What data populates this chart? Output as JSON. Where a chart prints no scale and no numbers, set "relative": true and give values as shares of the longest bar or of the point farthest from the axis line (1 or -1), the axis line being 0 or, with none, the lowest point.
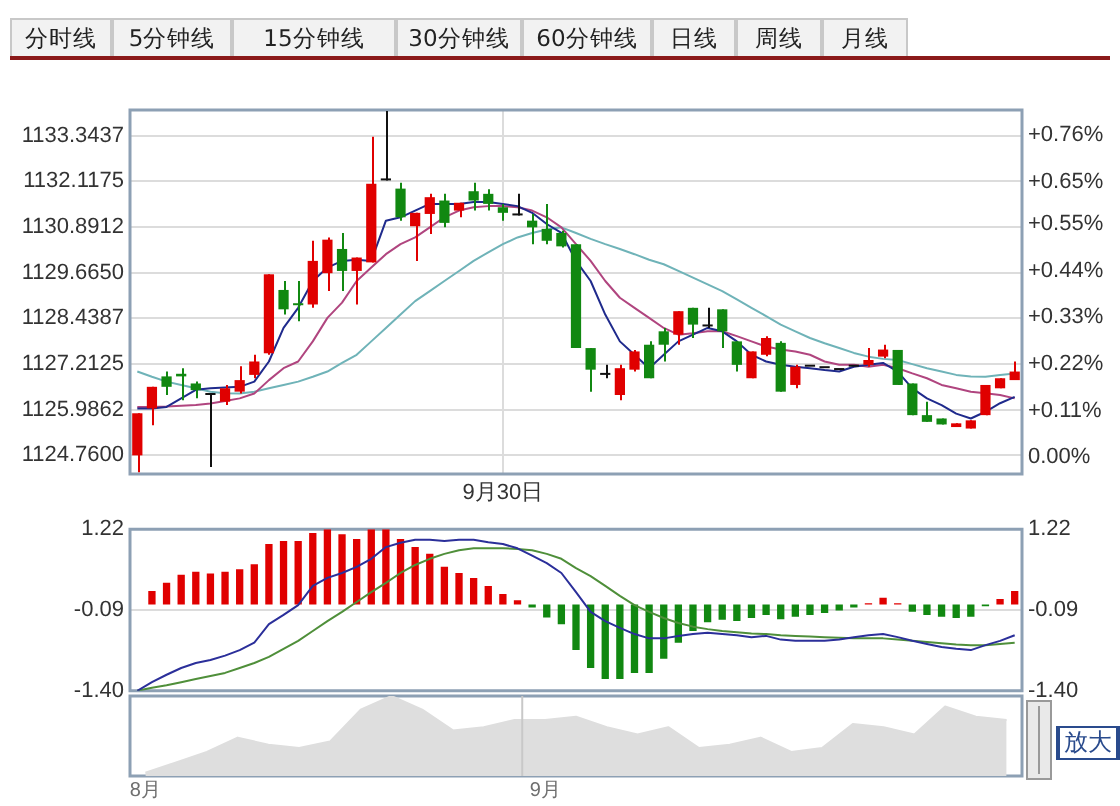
{
  "chart_data": [
    {
      "type": "other",
      "annotations": [
        "分时线",
        "5分钟线",
        "15分钟线",
        "30分钟线",
        "60分钟线",
        "日线",
        "周线",
        "月线"
      ]
    },
    {
      "type": "candlestick",
      "grid": true,
      "categories": [
        null,
        null,
        null,
        null,
        null,
        null,
        null,
        null,
        null,
        null,
        null,
        null,
        null,
        null,
        null,
        null,
        null,
        null,
        null,
        null,
        null,
        null,
        null,
        null,
        null,
        "9月30日",
        null,
        null,
        null,
        null,
        null,
        null,
        null,
        null,
        null,
        null,
        null,
        null,
        null,
        null,
        null,
        null,
        null,
        null,
        null,
        null,
        null,
        null,
        null,
        null,
        null,
        null,
        null,
        null,
        null,
        null,
        null,
        null,
        null,
        null,
        null
      ],
      "ohlc": [
        [
          1124.76,
          1125.89,
          1124.31,
          1125.89
        ],
        [
          1126.02,
          1126.6,
          1125.57,
          1126.6
        ],
        [
          1126.88,
          1127.01,
          1126.38,
          1126.6
        ],
        [
          1126.95,
          1127.1,
          1126.24,
          1126.88
        ],
        [
          1126.69,
          1126.74,
          1126.29,
          1126.51
        ],
        [
          1126.38,
          1126.43,
          1124.45,
          1126.38
        ],
        [
          1126.2,
          1126.65,
          1126.11,
          1126.56
        ],
        [
          1126.47,
          1127.15,
          1126.42,
          1126.78
        ],
        [
          1126.92,
          1127.46,
          1126.83,
          1127.28
        ],
        [
          1127.5,
          1129.62,
          1127.46,
          1129.62
        ],
        [
          1129.2,
          1129.44,
          1128.54,
          1128.68
        ],
        [
          1128.84,
          1129.44,
          1128.36,
          1128.79
        ],
        [
          1128.81,
          1130.52,
          1128.72,
          1129.98
        ],
        [
          1129.65,
          1130.61,
          1129.17,
          1130.55
        ],
        [
          1130.3,
          1130.73,
          1129.17,
          1129.71
        ],
        [
          1129.71,
          1130.07,
          1128.81,
          1130.07
        ],
        [
          1129.94,
          1133.31,
          1129.94,
          1132.05
        ],
        [
          1132.14,
          1134.0,
          1132.14,
          1132.14
        ],
        [
          1131.92,
          1132.08,
          1131.06,
          1131.15
        ],
        [
          1130.91,
          1131.27,
          1129.98,
          1131.27
        ],
        [
          1131.24,
          1131.78,
          1130.7,
          1131.69
        ],
        [
          1131.6,
          1131.78,
          1130.88,
          1131.0
        ],
        [
          1131.33,
          1131.54,
          1131.15,
          1131.54
        ],
        [
          1131.85,
          1132.08,
          1131.33,
          1131.6
        ],
        [
          1131.78,
          1131.9,
          1131.33,
          1131.51
        ],
        [
          1131.42,
          1131.51,
          1131.06,
          1131.27
        ],
        [
          1131.2,
          1131.78,
          1131.2,
          1131.2
        ],
        [
          1131.06,
          1131.24,
          1130.43,
          1130.88
        ],
        [
          1130.84,
          1131.51,
          1130.43,
          1130.52
        ],
        [
          1130.73,
          1130.79,
          1130.34,
          1130.37
        ],
        [
          1130.43,
          1130.43,
          1127.64,
          1127.64
        ],
        [
          1127.64,
          1127.64,
          1126.47,
          1127.06
        ],
        [
          1126.92,
          1127.19,
          1126.83,
          1126.92
        ],
        [
          1126.38,
          1127.19,
          1126.24,
          1127.1
        ],
        [
          1127.06,
          1127.59,
          1127.01,
          1127.55
        ],
        [
          1127.73,
          1127.82,
          1126.83,
          1126.83
        ],
        [
          1128.09,
          1128.18,
          1127.28,
          1127.73
        ],
        [
          1128.0,
          1128.63,
          1127.73,
          1128.63
        ],
        [
          1128.72,
          1128.72,
          1127.91,
          1128.27
        ],
        [
          1128.22,
          1128.72,
          1128.18,
          1128.22
        ],
        [
          1128.68,
          1128.68,
          1127.64,
          1128.09
        ],
        [
          1127.82,
          1127.82,
          1127.01,
          1127.19
        ],
        [
          1126.83,
          1127.55,
          1126.83,
          1127.55
        ],
        [
          1127.46,
          1127.96,
          1127.42,
          1127.91
        ],
        [
          1127.78,
          1127.82,
          1126.47,
          1126.47
        ],
        [
          1126.65,
          1127.19,
          1126.56,
          1127.14
        ],
        [
          1127.14,
          1127.14,
          1127.14,
          1127.14
        ],
        [
          1127.1,
          1127.1,
          1127.1,
          1127.1
        ],
        [
          1127.05,
          1127.05,
          1127.05,
          1127.05
        ],
        [
          1127.14,
          1127.14,
          1127.14,
          1127.14
        ],
        [
          1127.19,
          1127.64,
          1127.14,
          1127.32
        ],
        [
          1127.41,
          1127.73,
          1127.37,
          1127.6
        ],
        [
          1127.59,
          1127.59,
          1126.65,
          1126.65
        ],
        [
          1126.69,
          1126.69,
          1125.84,
          1125.84
        ],
        [
          1125.84,
          1126.2,
          1125.66,
          1125.66
        ],
        [
          1125.75,
          1125.75,
          1125.59,
          1125.59
        ],
        [
          1125.52,
          1125.62,
          1125.52,
          1125.62
        ],
        [
          1125.48,
          1125.7,
          1125.48,
          1125.7
        ],
        [
          1125.84,
          1126.65,
          1125.84,
          1126.65
        ],
        [
          1126.56,
          1126.83,
          1126.56,
          1126.83
        ],
        [
          1126.78,
          1127.28,
          1126.78,
          1127.01
        ]
      ],
      "series": [
        {
          "type": "line",
          "color": "#1f2a8c",
          "values": [
            1126.02,
            1126.02,
            1126.06,
            1126.29,
            1126.52,
            1126.56,
            1126.58,
            1126.6,
            1126.74,
            1127.28,
            1128.18,
            1128.72,
            1129.44,
            1129.8,
            1129.98,
            1130.01,
            1129.98,
            1131.06,
            1131.15,
            1131.33,
            1131.51,
            1131.51,
            1131.51,
            1131.56,
            1131.56,
            1131.51,
            1131.45,
            1131.27,
            1130.97,
            1130.73,
            1129.98,
            1129.44,
            1128.54,
            1127.82,
            1127.46,
            1127.1,
            1127.46,
            1127.82,
            1128.0,
            1128.18,
            1128.09,
            1127.82,
            1127.46,
            1127.28,
            1127.19,
            1127.14,
            1127.1,
            1127.05,
            1127.01,
            1127.14,
            1127.19,
            1127.24,
            1127.01,
            1126.56,
            1126.29,
            1126.11,
            1125.88,
            1125.75,
            1125.93,
            1126.16,
            1126.33
          ]
        },
        {
          "type": "line",
          "color": "#b0457f",
          "values": [
            1126.06,
            1126.06,
            1126.07,
            1126.09,
            1126.11,
            1126.15,
            1126.22,
            1126.29,
            1126.42,
            1126.78,
            1127.1,
            1127.28,
            1127.82,
            1128.45,
            1128.86,
            1129.44,
            1129.8,
            1130.16,
            1130.43,
            1130.61,
            1130.88,
            1131.15,
            1131.33,
            1131.42,
            1131.45,
            1131.45,
            1131.42,
            1131.33,
            1131.15,
            1130.88,
            1130.43,
            1129.98,
            1129.44,
            1128.99,
            1128.72,
            1128.45,
            1128.18,
            1128.0,
            1128.04,
            1128.09,
            1128.09,
            1127.96,
            1127.82,
            1127.68,
            1127.6,
            1127.55,
            1127.46,
            1127.28,
            1127.19,
            1127.19,
            1127.14,
            1127.19,
            1127.1,
            1126.96,
            1126.83,
            1126.65,
            1126.56,
            1126.47,
            1126.43,
            1126.38,
            1126.29
          ]
        },
        {
          "type": "line",
          "color": "#6fb3b8",
          "values": [
            1127.01,
            1126.87,
            1126.74,
            1126.65,
            1126.56,
            1126.47,
            1126.43,
            1126.42,
            1126.47,
            1126.56,
            1126.65,
            1126.74,
            1126.87,
            1127.01,
            1127.24,
            1127.46,
            1127.82,
            1128.18,
            1128.54,
            1128.9,
            1129.17,
            1129.44,
            1129.71,
            1129.98,
            1130.21,
            1130.43,
            1130.61,
            1130.73,
            1130.82,
            1130.88,
            1130.73,
            1130.57,
            1130.43,
            1130.3,
            1130.16,
            1130.01,
            1129.89,
            1129.71,
            1129.53,
            1129.35,
            1129.17,
            1128.95,
            1128.72,
            1128.5,
            1128.27,
            1128.09,
            1127.91,
            1127.77,
            1127.64,
            1127.51,
            1127.41,
            1127.35,
            1127.32,
            1127.21,
            1127.1,
            1127.01,
            1126.92,
            1126.88,
            1126.87,
            1126.92,
            1126.96
          ]
        }
      ],
      "ylim": [
        1124.26,
        1134.03
      ],
      "yticks": [
        {
          "value": 1124.76,
          "label": "1124.7600"
        },
        1125.9862,
        1127.2125,
        1128.4387,
        {
          "value": 1129.665,
          "label": "1129.6650"
        },
        1130.8912,
        1132.1175,
        1133.3437
      ],
      "y2lim": [
        -0.04,
        0.82
      ],
      "y2ticks": [
        {
          "value": 0,
          "label": "0.00%"
        },
        {
          "value": 0.11,
          "label": "+0.11%"
        },
        {
          "value": 0.22,
          "label": "+0.22%"
        },
        {
          "value": 0.33,
          "label": "+0.33%"
        },
        {
          "value": 0.44,
          "label": "+0.44%"
        },
        {
          "value": 0.55,
          "label": "+0.55%"
        },
        {
          "value": 0.65,
          "label": "+0.65%"
        },
        {
          "value": 0.76,
          "label": "+0.76%"
        }
      ]
    },
    {
      "type": "bar",
      "grid": "y",
      "tick_labels": "y",
      "categories": [
        null,
        null,
        null,
        null,
        null,
        null,
        null,
        null,
        null,
        null,
        null,
        null,
        null,
        null,
        null,
        null,
        null,
        null,
        null,
        null,
        null,
        null,
        null,
        null,
        null,
        null,
        null,
        null,
        null,
        null,
        null,
        null,
        null,
        null,
        null,
        null,
        null,
        null,
        null,
        null,
        null,
        null,
        null,
        null,
        null,
        null,
        null,
        null,
        null,
        null,
        null,
        null,
        null,
        null,
        null,
        null,
        null,
        null,
        null,
        null,
        null
      ],
      "series": [
        {
          "type": "bar",
          "values": [
            null,
            0.22,
            0.35,
            0.48,
            0.53,
            0.5,
            0.53,
            0.57,
            0.65,
            0.98,
            1.03,
            1.03,
            1.16,
            1.22,
            1.14,
            1.06,
            1.22,
            1.22,
            1.06,
            0.93,
            0.82,
            0.61,
            0.51,
            0.43,
            0.3,
            0.17,
            0.07,
            -0.05,
            -0.21,
            -0.32,
            -0.74,
            -1.03,
            -1.21,
            -1.21,
            -1.11,
            -1.11,
            -0.88,
            -0.62,
            -0.43,
            -0.29,
            -0.25,
            -0.27,
            -0.22,
            -0.17,
            -0.24,
            -0.2,
            -0.17,
            -0.14,
            -0.1,
            -0.05,
            0.02,
            0.11,
            0.02,
            -0.12,
            -0.17,
            -0.2,
            -0.22,
            -0.2,
            -0.03,
            0.09,
            0.22
          ],
          "colors": [
            null,
            "#e00000",
            "#e00000",
            "#e00000",
            "#e00000",
            "#e00000",
            "#e00000",
            "#e00000",
            "#e00000",
            "#e00000",
            "#e00000",
            "#e00000",
            "#e00000",
            "#e00000",
            "#e00000",
            "#e00000",
            "#e00000",
            "#e00000",
            "#e00000",
            "#e00000",
            "#e00000",
            "#e00000",
            "#e00000",
            "#e00000",
            "#e00000",
            "#e00000",
            "#e00000",
            "#118811",
            "#118811",
            "#118811",
            "#118811",
            "#118811",
            "#118811",
            "#118811",
            "#118811",
            "#118811",
            "#118811",
            "#118811",
            "#118811",
            "#118811",
            "#118811",
            "#118811",
            "#118811",
            "#118811",
            "#118811",
            "#118811",
            "#118811",
            "#118811",
            "#118811",
            "#118811",
            "#e00000",
            "#e00000",
            "#e00000",
            "#118811",
            "#118811",
            "#118811",
            "#118811",
            "#118811",
            "#118811",
            "#e00000",
            "#e00000"
          ]
        },
        {
          "type": "line",
          "color": "#2b2f9a",
          "values": [
            -1.4,
            -1.26,
            -1.14,
            -1.03,
            -0.95,
            -0.9,
            -0.83,
            -0.74,
            -0.62,
            -0.32,
            -0.17,
            -0.01,
            0.3,
            0.43,
            0.51,
            0.61,
            0.74,
            0.93,
            1.0,
            1.05,
            1.05,
            1.03,
            1.05,
            1.05,
            1.01,
            0.98,
            0.91,
            0.79,
            0.67,
            0.51,
            0.2,
            -0.12,
            -0.27,
            -0.38,
            -0.48,
            -0.55,
            -0.55,
            -0.51,
            -0.48,
            -0.46,
            -0.48,
            -0.5,
            -0.53,
            -0.51,
            -0.57,
            -0.59,
            -0.59,
            -0.59,
            -0.57,
            -0.53,
            -0.5,
            -0.48,
            -0.53,
            -0.59,
            -0.64,
            -0.69,
            -0.72,
            -0.74,
            -0.66,
            -0.59,
            -0.5
          ]
        },
        {
          "type": "line",
          "color": "#4f8f3a",
          "values": [
            -1.4,
            -1.35,
            -1.31,
            -1.26,
            -1.21,
            -1.16,
            -1.11,
            -1.03,
            -0.95,
            -0.85,
            -0.72,
            -0.59,
            -0.43,
            -0.27,
            -0.12,
            0.04,
            0.2,
            0.35,
            0.51,
            0.64,
            0.74,
            0.82,
            0.88,
            0.91,
            0.91,
            0.91,
            0.9,
            0.88,
            0.82,
            0.74,
            0.59,
            0.46,
            0.3,
            0.14,
            -0.01,
            -0.12,
            -0.22,
            -0.3,
            -0.36,
            -0.4,
            -0.43,
            -0.45,
            -0.47,
            -0.48,
            -0.5,
            -0.51,
            -0.52,
            -0.53,
            -0.54,
            -0.55,
            -0.55,
            -0.55,
            -0.57,
            -0.59,
            -0.61,
            -0.63,
            -0.65,
            -0.66,
            -0.66,
            -0.64,
            -0.62
          ]
        }
      ],
      "ylim": [
        -1.4,
        1.22
      ],
      "yticks": [
        {
          "value": -1.4,
          "label": "-1.40"
        },
        -0.09,
        1.22
      ],
      "y2lim": [
        -1.4,
        1.22
      ],
      "y2ticks": [
        {
          "value": -1.4,
          "label": "-1.40"
        },
        -0.09,
        1.22
      ]
    },
    {
      "type": "area",
      "relative": true,
      "tick_labels": "x",
      "color": "#dedede",
      "categories": [
        "8月",
        null,
        null,
        null,
        null,
        null,
        null,
        null,
        null,
        null,
        null,
        null,
        null,
        "9月",
        null,
        null,
        null,
        null,
        null,
        null,
        null,
        null,
        null,
        null,
        null,
        null,
        null,
        null,
        null
      ],
      "values": [
        0.04,
        0.17,
        0.3,
        0.48,
        0.39,
        0.35,
        0.43,
        0.83,
        1,
        0.83,
        0.57,
        0.61,
        0.7,
        0.7,
        0.74,
        0.61,
        0.52,
        0.61,
        0.35,
        0.39,
        0.48,
        0.3,
        0.35,
        0.65,
        0.61,
        0.52,
        0.87,
        0.74,
        0.7
      ],
      "annotations": [
        "放大"
      ]
    }
  ]
}
